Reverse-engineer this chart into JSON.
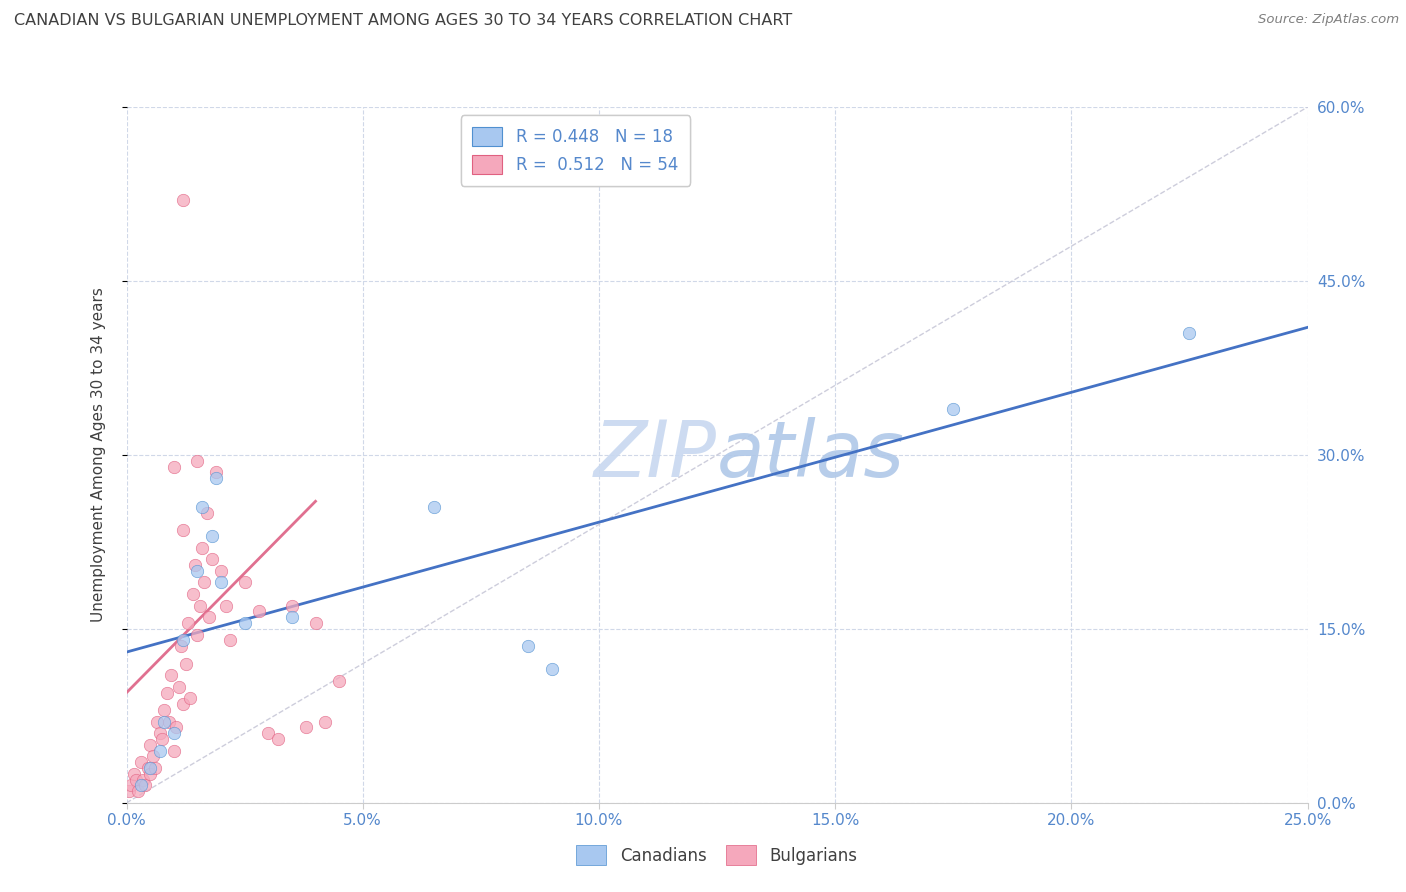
{
  "title": "CANADIAN VS BULGARIAN UNEMPLOYMENT AMONG AGES 30 TO 34 YEARS CORRELATION CHART",
  "source": "Source: ZipAtlas.com",
  "xlabel_ticks": [
    "0.0%",
    "5.0%",
    "10.0%",
    "15.0%",
    "20.0%",
    "25.0%"
  ],
  "ylabel_ticks_right": [
    "0.0%",
    "15.0%",
    "30.0%",
    "45.0%",
    "60.0%"
  ],
  "ylabel_label": "Unemployment Among Ages 30 to 34 years",
  "legend_text_blue": "R = 0.448   N = 18",
  "legend_text_pink": "R =  0.512   N = 54",
  "canadian_dots": [
    [
      0.3,
      1.5
    ],
    [
      0.5,
      3.0
    ],
    [
      0.7,
      4.5
    ],
    [
      0.8,
      7.0
    ],
    [
      1.0,
      6.0
    ],
    [
      1.2,
      14.0
    ],
    [
      1.5,
      20.0
    ],
    [
      1.6,
      25.5
    ],
    [
      1.8,
      23.0
    ],
    [
      1.9,
      28.0
    ],
    [
      2.0,
      19.0
    ],
    [
      2.5,
      15.5
    ],
    [
      3.5,
      16.0
    ],
    [
      6.5,
      25.5
    ],
    [
      8.5,
      13.5
    ],
    [
      9.0,
      11.5
    ],
    [
      17.5,
      34.0
    ],
    [
      22.5,
      40.5
    ]
  ],
  "bulgarian_dots": [
    [
      0.05,
      1.0
    ],
    [
      0.1,
      1.5
    ],
    [
      0.15,
      2.5
    ],
    [
      0.2,
      2.0
    ],
    [
      0.25,
      1.0
    ],
    [
      0.3,
      3.5
    ],
    [
      0.35,
      2.0
    ],
    [
      0.4,
      1.5
    ],
    [
      0.45,
      3.0
    ],
    [
      0.5,
      2.5
    ],
    [
      0.5,
      5.0
    ],
    [
      0.55,
      4.0
    ],
    [
      0.6,
      3.0
    ],
    [
      0.65,
      7.0
    ],
    [
      0.7,
      6.0
    ],
    [
      0.75,
      5.5
    ],
    [
      0.8,
      8.0
    ],
    [
      0.85,
      9.5
    ],
    [
      0.9,
      7.0
    ],
    [
      0.95,
      11.0
    ],
    [
      1.0,
      4.5
    ],
    [
      1.05,
      6.5
    ],
    [
      1.1,
      10.0
    ],
    [
      1.15,
      13.5
    ],
    [
      1.2,
      8.5
    ],
    [
      1.25,
      12.0
    ],
    [
      1.3,
      15.5
    ],
    [
      1.35,
      9.0
    ],
    [
      1.4,
      18.0
    ],
    [
      1.45,
      20.5
    ],
    [
      1.5,
      14.5
    ],
    [
      1.55,
      17.0
    ],
    [
      1.6,
      22.0
    ],
    [
      1.65,
      19.0
    ],
    [
      1.7,
      25.0
    ],
    [
      1.75,
      16.0
    ],
    [
      1.8,
      21.0
    ],
    [
      1.9,
      28.5
    ],
    [
      2.0,
      20.0
    ],
    [
      2.1,
      17.0
    ],
    [
      2.2,
      14.0
    ],
    [
      2.5,
      19.0
    ],
    [
      2.8,
      16.5
    ],
    [
      3.0,
      6.0
    ],
    [
      3.2,
      5.5
    ],
    [
      3.5,
      17.0
    ],
    [
      3.8,
      6.5
    ],
    [
      4.0,
      15.5
    ],
    [
      4.2,
      7.0
    ],
    [
      4.5,
      10.5
    ],
    [
      1.0,
      29.0
    ],
    [
      1.2,
      23.5
    ],
    [
      1.5,
      29.5
    ],
    [
      1.2,
      52.0
    ]
  ],
  "blue_line_x": [
    0,
    25
  ],
  "blue_line_y": [
    13.0,
    41.0
  ],
  "pink_line_x": [
    0.0,
    4.0
  ],
  "pink_line_y": [
    9.5,
    26.0
  ],
  "xlim": [
    0,
    25
  ],
  "ylim": [
    0,
    60
  ],
  "dot_size": 80,
  "canadian_color": "#a8c8f0",
  "bulgarian_color": "#f5a8bc",
  "canadian_edge": "#5090d0",
  "bulgarian_edge": "#e06080",
  "blue_line_color": "#4472c4",
  "pink_line_color": "#e07090",
  "diag_color": "#c8c8d8",
  "grid_color": "#d0d8e8",
  "watermark_color": "#dde8f8",
  "title_color": "#404040",
  "source_color": "#808080",
  "bg_color": "#ffffff",
  "tick_color": "#5588cc",
  "ylabel_color": "#404040"
}
